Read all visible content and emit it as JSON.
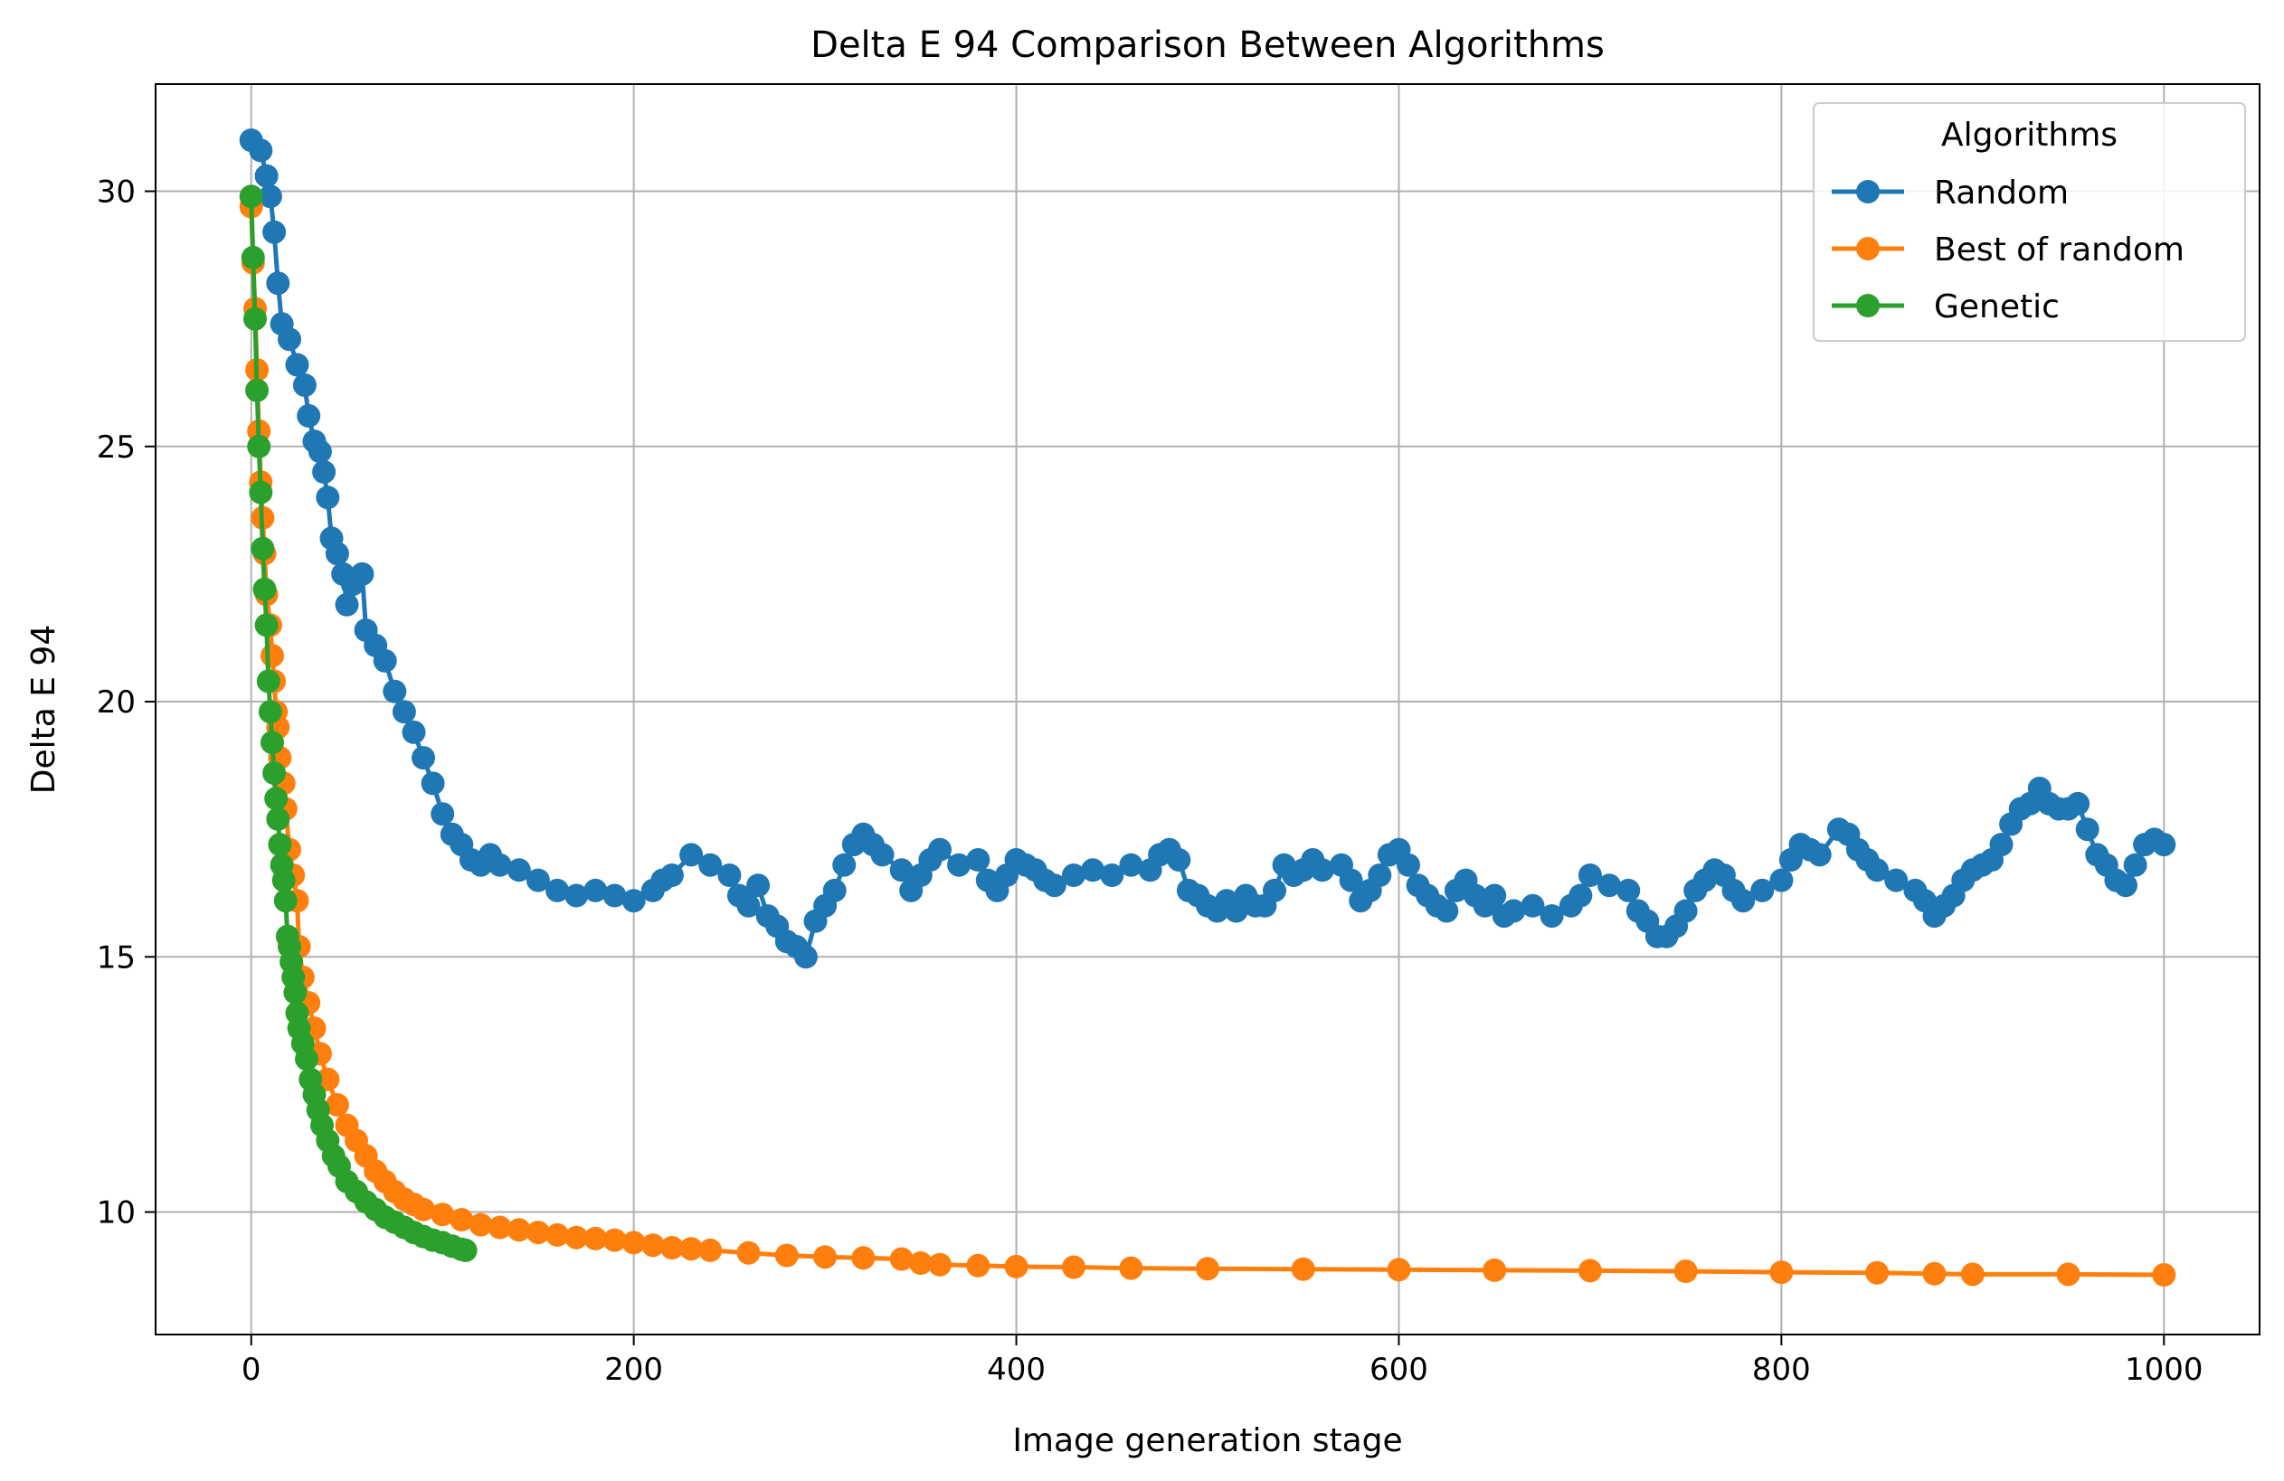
{
  "chart_data": {
    "type": "line",
    "title": "Delta E 94 Comparison Between Algorithms",
    "xlabel": "Image generation stage",
    "ylabel": "Delta E 94",
    "xlim": [
      -50,
      1050
    ],
    "ylim": [
      7.6,
      32.1
    ],
    "xticks": [
      0,
      200,
      400,
      600,
      800,
      1000
    ],
    "yticks": [
      10,
      15,
      20,
      25,
      30
    ],
    "grid": true,
    "legend": {
      "title": "Algorithms",
      "position": "top-right"
    },
    "series": [
      {
        "name": "Random",
        "color": "#1f77b4",
        "marker": "circle",
        "points": [
          [
            0,
            31.0
          ],
          [
            5,
            30.8
          ],
          [
            8,
            30.3
          ],
          [
            10,
            29.9
          ],
          [
            12,
            29.2
          ],
          [
            14,
            28.2
          ],
          [
            16,
            27.4
          ],
          [
            20,
            27.1
          ],
          [
            24,
            26.6
          ],
          [
            28,
            26.2
          ],
          [
            30,
            25.6
          ],
          [
            33,
            25.1
          ],
          [
            36,
            24.9
          ],
          [
            38,
            24.5
          ],
          [
            40,
            24.0
          ],
          [
            42,
            23.2
          ],
          [
            45,
            22.9
          ],
          [
            48,
            22.5
          ],
          [
            50,
            21.9
          ],
          [
            53,
            22.3
          ],
          [
            58,
            22.5
          ],
          [
            60,
            21.4
          ],
          [
            65,
            21.1
          ],
          [
            70,
            20.8
          ],
          [
            75,
            20.2
          ],
          [
            80,
            19.8
          ],
          [
            85,
            19.4
          ],
          [
            90,
            18.9
          ],
          [
            95,
            18.4
          ],
          [
            100,
            17.8
          ],
          [
            105,
            17.4
          ],
          [
            110,
            17.2
          ],
          [
            115,
            16.9
          ],
          [
            120,
            16.8
          ],
          [
            125,
            17.0
          ],
          [
            130,
            16.8
          ],
          [
            140,
            16.7
          ],
          [
            150,
            16.5
          ],
          [
            160,
            16.3
          ],
          [
            170,
            16.2
          ],
          [
            180,
            16.3
          ],
          [
            190,
            16.2
          ],
          [
            200,
            16.1
          ],
          [
            210,
            16.3
          ],
          [
            215,
            16.5
          ],
          [
            220,
            16.6
          ],
          [
            230,
            17.0
          ],
          [
            240,
            16.8
          ],
          [
            250,
            16.6
          ],
          [
            255,
            16.2
          ],
          [
            260,
            16.0
          ],
          [
            265,
            16.4
          ],
          [
            270,
            15.8
          ],
          [
            275,
            15.6
          ],
          [
            280,
            15.3
          ],
          [
            285,
            15.2
          ],
          [
            290,
            15.0
          ],
          [
            295,
            15.7
          ],
          [
            300,
            16.0
          ],
          [
            305,
            16.3
          ],
          [
            310,
            16.8
          ],
          [
            315,
            17.2
          ],
          [
            320,
            17.4
          ],
          [
            325,
            17.2
          ],
          [
            330,
            17.0
          ],
          [
            340,
            16.7
          ],
          [
            345,
            16.3
          ],
          [
            350,
            16.6
          ],
          [
            355,
            16.9
          ],
          [
            360,
            17.1
          ],
          [
            370,
            16.8
          ],
          [
            380,
            16.9
          ],
          [
            385,
            16.5
          ],
          [
            390,
            16.3
          ],
          [
            395,
            16.6
          ],
          [
            400,
            16.9
          ],
          [
            405,
            16.8
          ],
          [
            410,
            16.7
          ],
          [
            415,
            16.5
          ],
          [
            420,
            16.4
          ],
          [
            430,
            16.6
          ],
          [
            440,
            16.7
          ],
          [
            450,
            16.6
          ],
          [
            460,
            16.8
          ],
          [
            470,
            16.7
          ],
          [
            475,
            17.0
          ],
          [
            480,
            17.1
          ],
          [
            485,
            16.9
          ],
          [
            490,
            16.3
          ],
          [
            495,
            16.2
          ],
          [
            500,
            16.0
          ],
          [
            505,
            15.9
          ],
          [
            510,
            16.1
          ],
          [
            515,
            15.9
          ],
          [
            520,
            16.2
          ],
          [
            525,
            16.0
          ],
          [
            530,
            16.0
          ],
          [
            535,
            16.3
          ],
          [
            540,
            16.8
          ],
          [
            545,
            16.6
          ],
          [
            550,
            16.7
          ],
          [
            555,
            16.9
          ],
          [
            560,
            16.7
          ],
          [
            570,
            16.8
          ],
          [
            575,
            16.5
          ],
          [
            580,
            16.1
          ],
          [
            585,
            16.3
          ],
          [
            590,
            16.6
          ],
          [
            595,
            17.0
          ],
          [
            600,
            17.1
          ],
          [
            605,
            16.8
          ],
          [
            610,
            16.4
          ],
          [
            615,
            16.2
          ],
          [
            620,
            16.0
          ],
          [
            625,
            15.9
          ],
          [
            630,
            16.3
          ],
          [
            635,
            16.5
          ],
          [
            640,
            16.2
          ],
          [
            645,
            16.0
          ],
          [
            650,
            16.2
          ],
          [
            655,
            15.8
          ],
          [
            660,
            15.9
          ],
          [
            670,
            16.0
          ],
          [
            680,
            15.8
          ],
          [
            690,
            16.0
          ],
          [
            695,
            16.2
          ],
          [
            700,
            16.6
          ],
          [
            710,
            16.4
          ],
          [
            720,
            16.3
          ],
          [
            725,
            15.9
          ],
          [
            730,
            15.7
          ],
          [
            735,
            15.4
          ],
          [
            740,
            15.4
          ],
          [
            745,
            15.6
          ],
          [
            750,
            15.9
          ],
          [
            755,
            16.3
          ],
          [
            760,
            16.5
          ],
          [
            765,
            16.7
          ],
          [
            770,
            16.6
          ],
          [
            775,
            16.3
          ],
          [
            780,
            16.1
          ],
          [
            790,
            16.3
          ],
          [
            800,
            16.5
          ],
          [
            805,
            16.9
          ],
          [
            810,
            17.2
          ],
          [
            815,
            17.1
          ],
          [
            820,
            17.0
          ],
          [
            830,
            17.5
          ],
          [
            835,
            17.4
          ],
          [
            840,
            17.1
          ],
          [
            845,
            16.9
          ],
          [
            850,
            16.7
          ],
          [
            860,
            16.5
          ],
          [
            870,
            16.3
          ],
          [
            875,
            16.1
          ],
          [
            880,
            15.8
          ],
          [
            885,
            16.0
          ],
          [
            890,
            16.2
          ],
          [
            895,
            16.5
          ],
          [
            900,
            16.7
          ],
          [
            905,
            16.8
          ],
          [
            910,
            16.9
          ],
          [
            915,
            17.2
          ],
          [
            920,
            17.6
          ],
          [
            925,
            17.9
          ],
          [
            930,
            18.0
          ],
          [
            935,
            18.3
          ],
          [
            940,
            18.0
          ],
          [
            945,
            17.9
          ],
          [
            950,
            17.9
          ],
          [
            955,
            18.0
          ],
          [
            960,
            17.5
          ],
          [
            965,
            17.0
          ],
          [
            970,
            16.8
          ],
          [
            975,
            16.5
          ],
          [
            980,
            16.4
          ],
          [
            985,
            16.8
          ],
          [
            990,
            17.2
          ],
          [
            995,
            17.3
          ],
          [
            1000,
            17.2
          ]
        ]
      },
      {
        "name": "Best of random",
        "color": "#ff7f0e",
        "marker": "circle",
        "points": [
          [
            0,
            29.7
          ],
          [
            1,
            28.6
          ],
          [
            2,
            27.7
          ],
          [
            3,
            26.5
          ],
          [
            4,
            25.3
          ],
          [
            5,
            24.3
          ],
          [
            6,
            23.6
          ],
          [
            7,
            22.9
          ],
          [
            8,
            22.1
          ],
          [
            10,
            21.5
          ],
          [
            11,
            20.9
          ],
          [
            12,
            20.4
          ],
          [
            13,
            19.8
          ],
          [
            14,
            19.5
          ],
          [
            15,
            18.9
          ],
          [
            17,
            18.4
          ],
          [
            18,
            17.9
          ],
          [
            20,
            17.1
          ],
          [
            22,
            16.6
          ],
          [
            24,
            16.1
          ],
          [
            25,
            15.2
          ],
          [
            27,
            14.6
          ],
          [
            30,
            14.1
          ],
          [
            33,
            13.6
          ],
          [
            36,
            13.1
          ],
          [
            40,
            12.6
          ],
          [
            45,
            12.1
          ],
          [
            50,
            11.7
          ],
          [
            55,
            11.4
          ],
          [
            60,
            11.1
          ],
          [
            65,
            10.8
          ],
          [
            70,
            10.6
          ],
          [
            75,
            10.4
          ],
          [
            80,
            10.25
          ],
          [
            85,
            10.15
          ],
          [
            90,
            10.05
          ],
          [
            100,
            9.95
          ],
          [
            110,
            9.85
          ],
          [
            120,
            9.75
          ],
          [
            130,
            9.7
          ],
          [
            140,
            9.65
          ],
          [
            150,
            9.6
          ],
          [
            160,
            9.55
          ],
          [
            170,
            9.5
          ],
          [
            180,
            9.48
          ],
          [
            190,
            9.45
          ],
          [
            200,
            9.4
          ],
          [
            210,
            9.35
          ],
          [
            220,
            9.3
          ],
          [
            230,
            9.28
          ],
          [
            240,
            9.25
          ],
          [
            260,
            9.2
          ],
          [
            280,
            9.15
          ],
          [
            300,
            9.12
          ],
          [
            320,
            9.1
          ],
          [
            340,
            9.08
          ],
          [
            350,
            9.0
          ],
          [
            360,
            8.97
          ],
          [
            380,
            8.95
          ],
          [
            400,
            8.93
          ],
          [
            430,
            8.92
          ],
          [
            460,
            8.9
          ],
          [
            500,
            8.89
          ],
          [
            550,
            8.88
          ],
          [
            600,
            8.87
          ],
          [
            650,
            8.86
          ],
          [
            700,
            8.85
          ],
          [
            750,
            8.84
          ],
          [
            800,
            8.82
          ],
          [
            850,
            8.81
          ],
          [
            880,
            8.79
          ],
          [
            900,
            8.78
          ],
          [
            950,
            8.78
          ],
          [
            1000,
            8.77
          ]
        ]
      },
      {
        "name": "Genetic",
        "color": "#2ca02c",
        "marker": "circle",
        "points": [
          [
            0,
            29.9
          ],
          [
            1,
            28.7
          ],
          [
            2,
            27.5
          ],
          [
            3,
            26.1
          ],
          [
            4,
            25.0
          ],
          [
            5,
            24.1
          ],
          [
            6,
            23.0
          ],
          [
            7,
            22.2
          ],
          [
            8,
            21.5
          ],
          [
            9,
            20.4
          ],
          [
            10,
            19.8
          ],
          [
            11,
            19.2
          ],
          [
            12,
            18.6
          ],
          [
            13,
            18.1
          ],
          [
            14,
            17.7
          ],
          [
            15,
            17.2
          ],
          [
            16,
            16.8
          ],
          [
            17,
            16.5
          ],
          [
            18,
            16.1
          ],
          [
            19,
            15.4
          ],
          [
            20,
            15.2
          ],
          [
            21,
            14.9
          ],
          [
            22,
            14.6
          ],
          [
            23,
            14.3
          ],
          [
            24,
            13.9
          ],
          [
            25,
            13.6
          ],
          [
            27,
            13.3
          ],
          [
            29,
            13.0
          ],
          [
            31,
            12.6
          ],
          [
            33,
            12.3
          ],
          [
            35,
            12.0
          ],
          [
            37,
            11.7
          ],
          [
            40,
            11.4
          ],
          [
            43,
            11.1
          ],
          [
            46,
            10.9
          ],
          [
            50,
            10.6
          ],
          [
            55,
            10.4
          ],
          [
            60,
            10.2
          ],
          [
            65,
            10.05
          ],
          [
            70,
            9.9
          ],
          [
            75,
            9.8
          ],
          [
            80,
            9.7
          ],
          [
            85,
            9.6
          ],
          [
            90,
            9.52
          ],
          [
            95,
            9.45
          ],
          [
            100,
            9.4
          ],
          [
            105,
            9.33
          ],
          [
            110,
            9.27
          ],
          [
            112,
            9.25
          ]
        ]
      }
    ]
  }
}
